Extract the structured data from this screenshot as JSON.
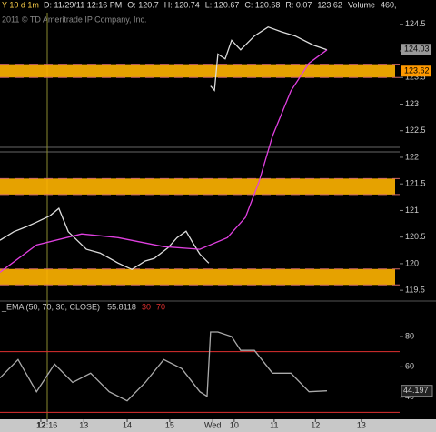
{
  "header": {
    "symbol": "Y 10 d 1m",
    "fields": [
      "D: 11/29/11 12:16 PM",
      "O: 120.7",
      "H: 120.74",
      "L: 120.67",
      "C: 120.68",
      "R: 0.07",
      "123.62",
      "Volume",
      "460,"
    ],
    "copyright": "2011 © TD Ameritrade IP Company, Inc."
  },
  "chart_data": [
    {
      "type": "line",
      "ylim": [
        119.4,
        124.65
      ],
      "yticks": [
        119.5,
        120,
        120.5,
        121,
        121.5,
        122,
        122.5,
        123,
        123.5,
        124,
        124.5
      ],
      "xlim": [
        0,
        9.3
      ],
      "bands": [
        [
          123.5,
          123.75
        ],
        [
          121.3,
          121.6
        ],
        [
          119.6,
          119.9
        ]
      ],
      "band_color": "#ffb400",
      "price_labels": [
        {
          "value": 124.03,
          "color": "#999999"
        },
        {
          "value": 123.62,
          "color": "#ff9900"
        }
      ],
      "series": [
        {
          "color": "#dddddd",
          "x": [
            0,
            0.32,
            0.63,
            0.85,
            1.16,
            1.37,
            1.59,
            2.01,
            2.33,
            2.75,
            3.07,
            3.38,
            3.59,
            3.91,
            4.12,
            4.33,
            4.48,
            4.65,
            4.86,
            4.88,
            4.9,
            4.99,
            5.07,
            5.24,
            5.39,
            5.6,
            5.92,
            6.24,
            6.55,
            6.87,
            7.29,
            7.61
          ],
          "values": [
            120.44,
            120.6,
            120.7,
            120.78,
            120.9,
            121.04,
            120.6,
            120.27,
            120.2,
            120.01,
            119.89,
            120.05,
            120.1,
            120.3,
            120.49,
            120.61,
            120.4,
            120.18,
            120.01,
            null,
            123.34,
            123.26,
            123.94,
            123.85,
            124.2,
            124.02,
            124.28,
            124.45,
            124.36,
            124.28,
            124.11,
            124.02
          ]
        },
        {
          "color": "#e040e0",
          "x": [
            0,
            0.85,
            1.9,
            2.75,
            3.81,
            4.65,
            5.29,
            5.71,
            6.03,
            6.34,
            6.77,
            7.19,
            7.61
          ],
          "values": [
            119.84,
            120.35,
            120.56,
            120.49,
            120.32,
            120.27,
            120.49,
            120.87,
            121.55,
            122.4,
            123.25,
            123.77,
            124.02
          ]
        }
      ]
    },
    {
      "type": "line",
      "title": "_EMA (50, 70, 30, CLOSE)",
      "last_value": 55.8118,
      "levels": [
        30,
        70
      ],
      "level_color": "#e03030",
      "current_label": 44.197,
      "ylim": [
        26,
        95
      ],
      "yticks": [
        40,
        60,
        80
      ],
      "xlim": [
        0,
        9.3
      ],
      "xticks": [
        {
          "value": 0.95,
          "label": "12"
        },
        {
          "value": 1.1,
          "label": "12:16"
        },
        {
          "value": 1.95,
          "label": "13"
        },
        {
          "value": 2.96,
          "label": "14"
        },
        {
          "value": 3.95,
          "label": "15"
        },
        {
          "value": 4.95,
          "label": "Wed"
        },
        {
          "value": 5.45,
          "label": "10"
        },
        {
          "value": 6.38,
          "label": "11"
        },
        {
          "value": 7.34,
          "label": "12"
        },
        {
          "value": 8.41,
          "label": "13"
        }
      ],
      "series": [
        {
          "color": "#aaaaaa",
          "x": [
            0,
            0.42,
            0.85,
            1.27,
            1.69,
            2.11,
            2.54,
            2.96,
            3.38,
            3.81,
            4.23,
            4.65,
            4.82,
            4.9,
            5.07,
            5.39,
            5.6,
            5.92,
            6.34,
            6.77,
            7.19,
            7.61
          ],
          "values": [
            52.7,
            64.8,
            43.6,
            61.8,
            49.7,
            55.8,
            43.6,
            37.6,
            49.7,
            64.8,
            58.8,
            43.6,
            40.6,
            83,
            83,
            80,
            70.9,
            70.9,
            55.8,
            55.8,
            43.6,
            44.2
          ]
        }
      ]
    }
  ]
}
